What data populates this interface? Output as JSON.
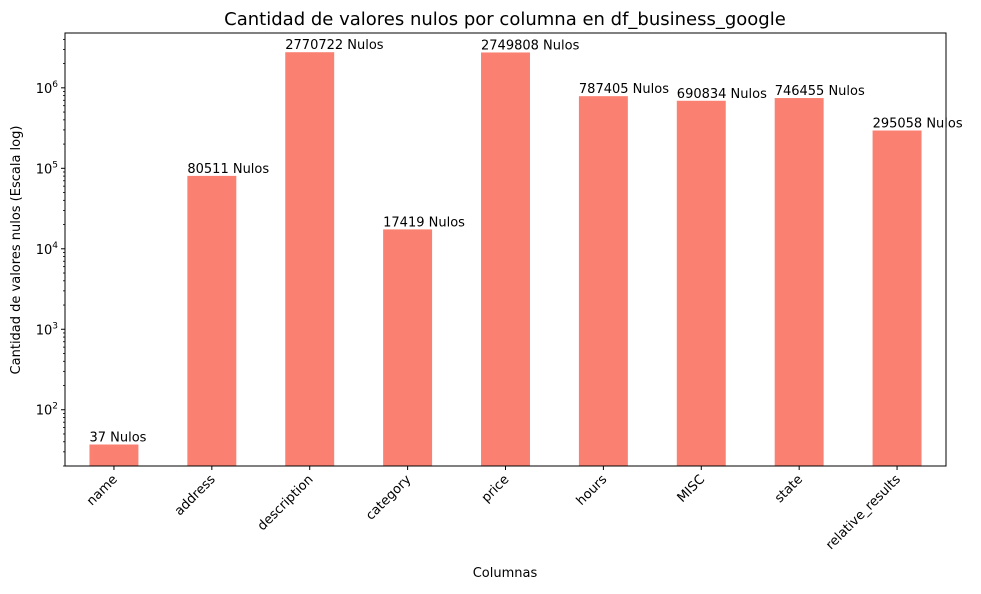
{
  "chart_data": {
    "type": "bar",
    "title": "Cantidad de valores nulos por columna en df_business_google",
    "xlabel": "Columnas",
    "ylabel": "Cantidad de valores nulos (Escala log)",
    "yscale": "log",
    "ylim": [
      20,
      4800000
    ],
    "grid": false,
    "legend": "none",
    "bar_color": "#fa8072",
    "categories": [
      "name",
      "address",
      "description",
      "category",
      "price",
      "hours",
      "MISC",
      "state",
      "relative_results"
    ],
    "values": [
      37,
      80511,
      2770722,
      17419,
      2749808,
      787405,
      690834,
      746455,
      295058
    ],
    "data_labels": [
      "37 Nulos",
      "80511 Nulos",
      "2770722 Nulos",
      "17419 Nulos",
      "2749808 Nulos",
      "787405 Nulos",
      "690834 Nulos",
      "746455 Nulos",
      "295058 Nulos"
    ],
    "y_ticks": [
      {
        "value": 100,
        "base": "10",
        "exp": "2"
      },
      {
        "value": 1000,
        "base": "10",
        "exp": "3"
      },
      {
        "value": 10000,
        "base": "10",
        "exp": "4"
      },
      {
        "value": 100000,
        "base": "10",
        "exp": "5"
      },
      {
        "value": 1000000,
        "base": "10",
        "exp": "6"
      }
    ]
  }
}
